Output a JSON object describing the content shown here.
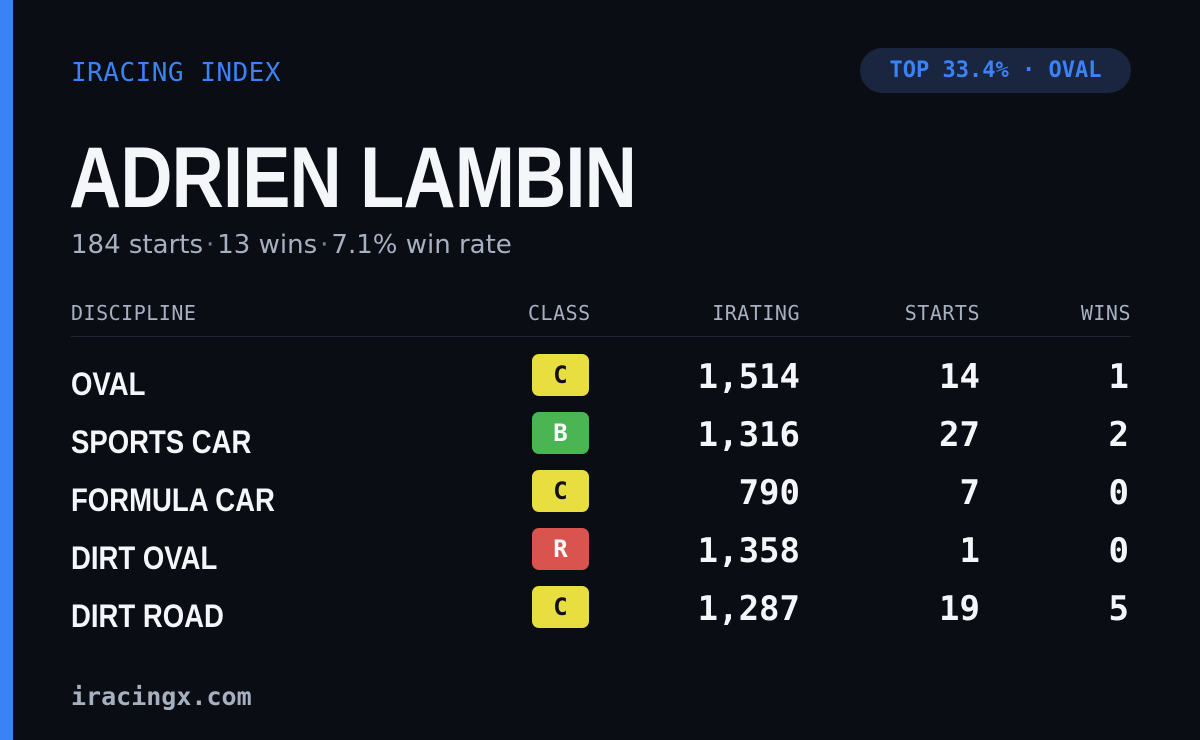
{
  "brand": "IRACING INDEX",
  "rank_badge": "TOP 33.4% · OVAL",
  "driver": {
    "name": "ADRIEN LAMBIN",
    "starts": "184 starts",
    "wins": "13 wins",
    "win_rate": "7.1% win rate",
    "separator": "·"
  },
  "table": {
    "headers": {
      "discipline": "DISCIPLINE",
      "class": "CLASS",
      "irating": "IRATING",
      "starts": "STARTS",
      "wins": "WINS"
    },
    "rows": [
      {
        "discipline": "OVAL",
        "class": "C",
        "irating": "1,514",
        "starts": "14",
        "wins": "1"
      },
      {
        "discipline": "SPORTS CAR",
        "class": "B",
        "irating": "1,316",
        "starts": "27",
        "wins": "2"
      },
      {
        "discipline": "FORMULA CAR",
        "class": "C",
        "irating": "790",
        "starts": "7",
        "wins": "0"
      },
      {
        "discipline": "DIRT OVAL",
        "class": "R",
        "irating": "1,358",
        "starts": "1",
        "wins": "0"
      },
      {
        "discipline": "DIRT ROAD",
        "class": "C",
        "irating": "1,287",
        "starts": "19",
        "wins": "5"
      }
    ]
  },
  "class_colors": {
    "C": "#e8de3f",
    "B": "#4cb553",
    "R": "#d9534f"
  },
  "colors": {
    "background": "#0a0d14",
    "accent": "#3b82f6",
    "badge_bg": "#1a2540",
    "muted": "#a7b0c0"
  },
  "footer": "iracingx.com"
}
